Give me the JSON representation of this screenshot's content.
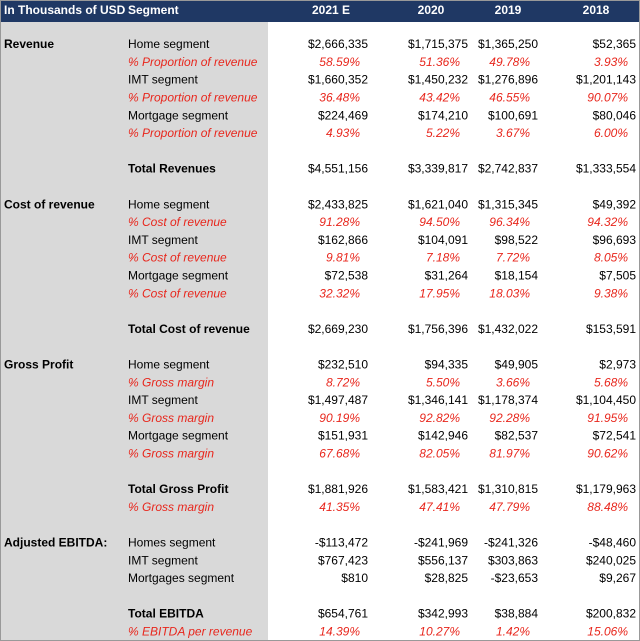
{
  "header": [
    "In Thousands of USD",
    "Segment",
    "2021 E",
    "2020",
    "2019",
    "2018"
  ],
  "sections": [
    {
      "title": "Revenue",
      "items": [
        {
          "label": "Home segment",
          "kind": "normal",
          "values": [
            "$2,666,335",
            "$1,715,375",
            "$1,365,250",
            "$52,365"
          ]
        },
        {
          "label": "% Proportion of revenue",
          "kind": "pct",
          "values": [
            "58.59%",
            "51.36%",
            "49.78%",
            "3.93%"
          ]
        },
        {
          "label": "IMT segment",
          "kind": "normal",
          "values": [
            "$1,660,352",
            "$1,450,232",
            "$1,276,896",
            "$1,201,143"
          ]
        },
        {
          "label": "% Proportion of revenue",
          "kind": "pct",
          "values": [
            "36.48%",
            "43.42%",
            "46.55%",
            "90.07%"
          ]
        },
        {
          "label": "Mortgage segment",
          "kind": "normal",
          "values": [
            "$224,469",
            "$174,210",
            "$100,691",
            "$80,046"
          ]
        },
        {
          "label": "% Proportion of revenue",
          "kind": "pct",
          "values": [
            "4.93%",
            "5.22%",
            "3.67%",
            "6.00%"
          ]
        }
      ],
      "totals": [
        {
          "label": "Total Revenues",
          "kind": "total",
          "values": [
            "$4,551,156",
            "$3,339,817",
            "$2,742,837",
            "$1,333,554"
          ]
        }
      ]
    },
    {
      "title": "Cost of revenue",
      "items": [
        {
          "label": "Home segment",
          "kind": "normal",
          "values": [
            "$2,433,825",
            "$1,621,040",
            "$1,315,345",
            "$49,392"
          ]
        },
        {
          "label": "% Cost of revenue",
          "kind": "pct",
          "values": [
            "91.28%",
            "94.50%",
            "96.34%",
            "94.32%"
          ]
        },
        {
          "label": "IMT segment",
          "kind": "normal",
          "values": [
            "$162,866",
            "$104,091",
            "$98,522",
            "$96,693"
          ]
        },
        {
          "label": "% Cost of revenue",
          "kind": "pct",
          "values": [
            "9.81%",
            "7.18%",
            "7.72%",
            "8.05%"
          ]
        },
        {
          "label": "Mortgage segment",
          "kind": "normal",
          "values": [
            "$72,538",
            "$31,264",
            "$18,154",
            "$7,505"
          ]
        },
        {
          "label": "% Cost of revenue",
          "kind": "pct",
          "values": [
            "32.32%",
            "17.95%",
            "18.03%",
            "9.38%"
          ]
        }
      ],
      "totals": [
        {
          "label": "Total Cost of revenue",
          "kind": "total",
          "values": [
            "$2,669,230",
            "$1,756,396",
            "$1,432,022",
            "$153,591"
          ]
        }
      ]
    },
    {
      "title": "Gross Profit",
      "items": [
        {
          "label": "Home segment",
          "kind": "normal",
          "values": [
            "$232,510",
            "$94,335",
            "$49,905",
            "$2,973"
          ]
        },
        {
          "label": "% Gross margin",
          "kind": "pct",
          "values": [
            "8.72%",
            "5.50%",
            "3.66%",
            "5.68%"
          ]
        },
        {
          "label": "IMT segment",
          "kind": "normal",
          "values": [
            "$1,497,487",
            "$1,346,141",
            "$1,178,374",
            "$1,104,450"
          ]
        },
        {
          "label": "% Gross margin",
          "kind": "pct",
          "values": [
            "90.19%",
            "92.82%",
            "92.28%",
            "91.95%"
          ]
        },
        {
          "label": "Mortgage segment",
          "kind": "normal",
          "values": [
            "$151,931",
            "$142,946",
            "$82,537",
            "$72,541"
          ]
        },
        {
          "label": "% Gross margin",
          "kind": "pct",
          "values": [
            "67.68%",
            "82.05%",
            "81.97%",
            "90.62%"
          ]
        }
      ],
      "totals": [
        {
          "label": "Total Gross Profit",
          "kind": "total",
          "values": [
            "$1,881,926",
            "$1,583,421",
            "$1,310,815",
            "$1,179,963"
          ]
        },
        {
          "label": "% Gross margin",
          "kind": "pct",
          "values": [
            "41.35%",
            "47.41%",
            "47.79%",
            "88.48%"
          ]
        }
      ]
    },
    {
      "title": "Adjusted EBITDA:",
      "items": [
        {
          "label": "Homes segment",
          "kind": "normal",
          "values": [
            "-$113,472",
            "-$241,969",
            "-$241,326",
            "-$48,460"
          ]
        },
        {
          "label": "IMT segment",
          "kind": "normal",
          "values": [
            "$767,423",
            "$556,137",
            "$303,863",
            "$240,025"
          ]
        },
        {
          "label": "Mortgages segment",
          "kind": "normal",
          "values": [
            "$810",
            "$28,825",
            "-$23,653",
            "$9,267"
          ]
        }
      ],
      "totals": [
        {
          "label": "Total EBITDA",
          "kind": "total",
          "values": [
            "$654,761",
            "$342,993",
            "$38,884",
            "$200,832"
          ]
        },
        {
          "label": "% EBITDA per revenue",
          "kind": "pct",
          "values": [
            "14.39%",
            "10.27%",
            "1.42%",
            "15.06%"
          ]
        }
      ]
    }
  ]
}
